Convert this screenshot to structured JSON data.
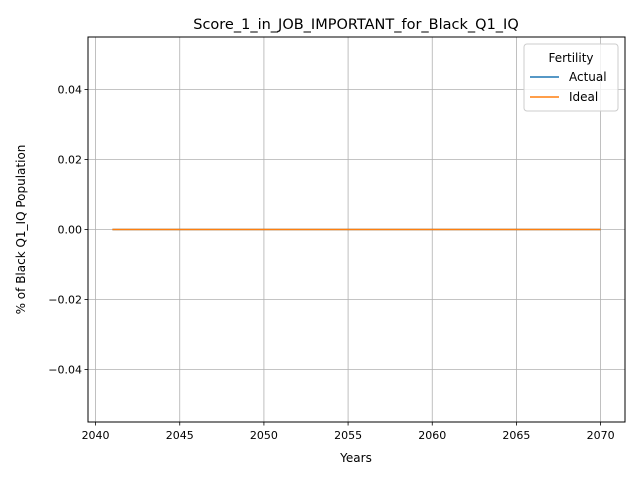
{
  "chart_data": {
    "type": "line",
    "title": "Score_1_in_JOB_IMPORTANT_for_Black_Q1_IQ",
    "xlabel": "Years",
    "ylabel": "% of Black Q1_IQ Population",
    "xlim": [
      2039.55,
      2071.45
    ],
    "ylim": [
      -0.055,
      0.055
    ],
    "x_ticks": [
      2040,
      2045,
      2050,
      2055,
      2060,
      2065,
      2070
    ],
    "y_ticks": [
      -0.04,
      -0.02,
      0.0,
      0.02,
      0.04
    ],
    "x_tick_labels": [
      "2040",
      "2045",
      "2050",
      "2055",
      "2060",
      "2065",
      "2070"
    ],
    "y_tick_labels": [
      "−0.04",
      "−0.02",
      "0.00",
      "0.02",
      "0.04"
    ],
    "grid": true,
    "legend": {
      "title": "Fertility",
      "placement": "top-right"
    },
    "x": [
      2041,
      2042,
      2043,
      2044,
      2045,
      2046,
      2047,
      2048,
      2049,
      2050,
      2051,
      2052,
      2053,
      2054,
      2055,
      2056,
      2057,
      2058,
      2059,
      2060,
      2061,
      2062,
      2063,
      2064,
      2065,
      2066,
      2067,
      2068,
      2069,
      2070
    ],
    "series": [
      {
        "name": "Actual",
        "color": "#1f77b4",
        "values": [
          0,
          0,
          0,
          0,
          0,
          0,
          0,
          0,
          0,
          0,
          0,
          0,
          0,
          0,
          0,
          0,
          0,
          0,
          0,
          0,
          0,
          0,
          0,
          0,
          0,
          0,
          0,
          0,
          0,
          0
        ]
      },
      {
        "name": "Ideal",
        "color": "#ff7f0e",
        "values": [
          0,
          0,
          0,
          0,
          0,
          0,
          0,
          0,
          0,
          0,
          0,
          0,
          0,
          0,
          0,
          0,
          0,
          0,
          0,
          0,
          0,
          0,
          0,
          0,
          0,
          0,
          0,
          0,
          0,
          0
        ]
      }
    ]
  }
}
